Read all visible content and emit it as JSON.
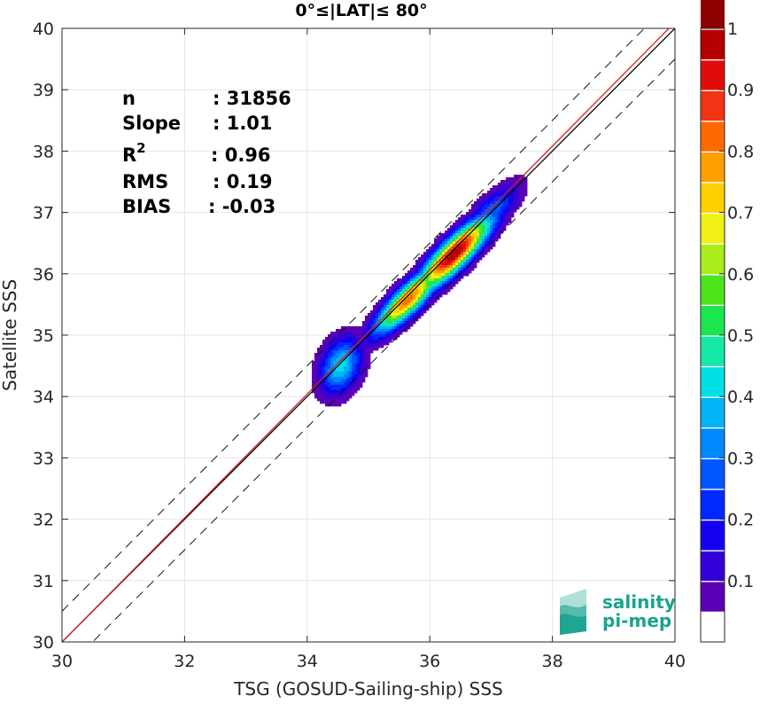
{
  "chart_data": {
    "type": "heatmap",
    "title": "0°≤|LAT|≤ 80°",
    "xlabel": "TSG (GOSUD-Sailing-ship) SSS",
    "ylabel": "Satellite SSS",
    "xlim": [
      30,
      40
    ],
    "ylim": [
      30,
      40
    ],
    "x_ticks": [
      "30",
      "32",
      "34",
      "36",
      "38",
      "40"
    ],
    "y_ticks": [
      "30",
      "31",
      "32",
      "33",
      "34",
      "35",
      "36",
      "37",
      "38",
      "39",
      "40"
    ],
    "grid": true,
    "reference_lines": {
      "identity": {
        "slope": 1,
        "intercept": 0,
        "color": "#000000"
      },
      "regression": {
        "slope": 1.01,
        "intercept": -0.3,
        "color": "#d62020"
      },
      "bounds": {
        "offset": 0.5,
        "style": "dashed",
        "color": "#000000"
      }
    },
    "density_clusters": [
      {
        "x": 34.55,
        "y": 34.5,
        "peak": 0.42,
        "sx": 0.24,
        "sy": 0.32,
        "rho": 0.3
      },
      {
        "x": 35.65,
        "y": 35.58,
        "peak": 0.82,
        "sx": 0.38,
        "sy": 0.38,
        "rho": 0.85
      },
      {
        "x": 36.4,
        "y": 36.32,
        "peak": 1.0,
        "sx": 0.42,
        "sy": 0.42,
        "rho": 0.86
      },
      {
        "x": 37.0,
        "y": 37.0,
        "peak": 0.3,
        "sx": 0.32,
        "sy": 0.32,
        "rho": 0.75
      }
    ],
    "stats": [
      {
        "label": "n",
        "value": ": 31856"
      },
      {
        "label": "Slope",
        "value": ": 1.01"
      },
      {
        "label": "R",
        "sup": "2",
        "value": ": 0.96"
      },
      {
        "label": "RMS",
        "value": ": 0.19"
      },
      {
        "label": "BIAS",
        "value": ": -0.03"
      }
    ],
    "colorbar": {
      "min": 0,
      "max": 1,
      "step": 0.05,
      "tick_labels": [
        "0.1",
        "0.2",
        "0.3",
        "0.4",
        "0.5",
        "0.6",
        "0.7",
        "0.8",
        "0.9",
        "1"
      ],
      "tick_values": [
        0.1,
        0.2,
        0.3,
        0.4,
        0.5,
        0.6,
        0.7,
        0.8,
        0.9,
        1.0
      ],
      "colors": [
        "#ffffff",
        "#5a00b4",
        "#3300d8",
        "#1400f0",
        "#0028ff",
        "#0057ff",
        "#0088ff",
        "#00b4f5",
        "#00e0e6",
        "#16e8a8",
        "#1ae650",
        "#4ee41c",
        "#a8ec1c",
        "#f0f016",
        "#ffd000",
        "#ffa000",
        "#ff6a00",
        "#f03414",
        "#e00c0c",
        "#b40000",
        "#8c0000"
      ]
    }
  },
  "logo": {
    "line1": "salinity",
    "line2": "pi-mep"
  }
}
